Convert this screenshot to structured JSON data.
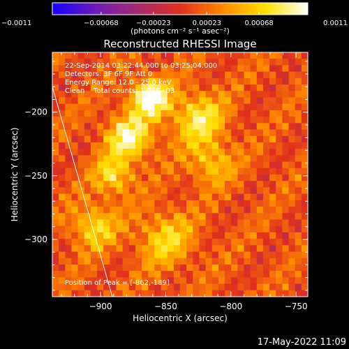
{
  "chart_data": {
    "type": "heatmap",
    "title": "Reconstructed RHESSI Image",
    "xlabel": "Heliocentric X (arcsec)",
    "ylabel": "Heliocentric Y (arcsec)",
    "xlim": [
      -937,
      -741
    ],
    "ylim": [
      -345,
      -153
    ],
    "x_ticks": [
      -900,
      -850,
      -800,
      -750
    ],
    "x_tick_labels": [
      "−900",
      "−850",
      "−800",
      "−750"
    ],
    "y_ticks": [
      -200,
      -250,
      -300
    ],
    "y_tick_labels": [
      "−200",
      "−250",
      "−300"
    ],
    "colorbar": {
      "range": [
        -0.0011,
        0.0011
      ],
      "ticks": [
        -0.0011,
        -0.00068,
        -0.00023,
        0.00023,
        0.00068,
        0.0011
      ],
      "tick_labels": [
        "−0.0011",
        "−0.00068",
        "−0.00023",
        "0.00023",
        "0.00068",
        "0.0011"
      ],
      "unit_label": "(photons cm⁻² s⁻¹ asec⁻²)",
      "colors": [
        "#1500ff",
        "#6b1bb8",
        "#a52a6c",
        "#e0301e",
        "#ff8a00",
        "#ffe000",
        "#ffffff"
      ]
    },
    "annotations": {
      "time_range": "22-Sep-2014 03:22:44.000 to 03:25:04.000",
      "detectors": "Detectors: 3F 6F 9F Att 0",
      "energy_range": "Energy Range: 12.0 - 25.0 keV",
      "method": "Clean    Total counts: 1.09E+03",
      "peak": "Position of Peak = [-862,-189]"
    },
    "peak": {
      "x": -862,
      "y": -189
    },
    "limb_line": [
      [
        -937,
        -180
      ],
      [
        -891,
        -345
      ]
    ],
    "sources": [
      {
        "x": -878,
        "y": -220,
        "amp": 0.00085,
        "sigma": 12
      },
      {
        "x": -862,
        "y": -189,
        "amp": 0.0011,
        "sigma": 10
      },
      {
        "x": -825,
        "y": -205,
        "amp": 0.0007,
        "sigma": 14
      },
      {
        "x": -815,
        "y": -240,
        "amp": 0.0005,
        "sigma": 12
      },
      {
        "x": -850,
        "y": -300,
        "amp": 0.00055,
        "sigma": 15
      },
      {
        "x": -905,
        "y": -290,
        "amp": 0.0006,
        "sigma": 12
      },
      {
        "x": -890,
        "y": -250,
        "amp": 0.00065,
        "sigma": 10
      }
    ],
    "baseline": 0.0003
  },
  "footer": {
    "timestamp": "17-May-2022 11:09"
  }
}
